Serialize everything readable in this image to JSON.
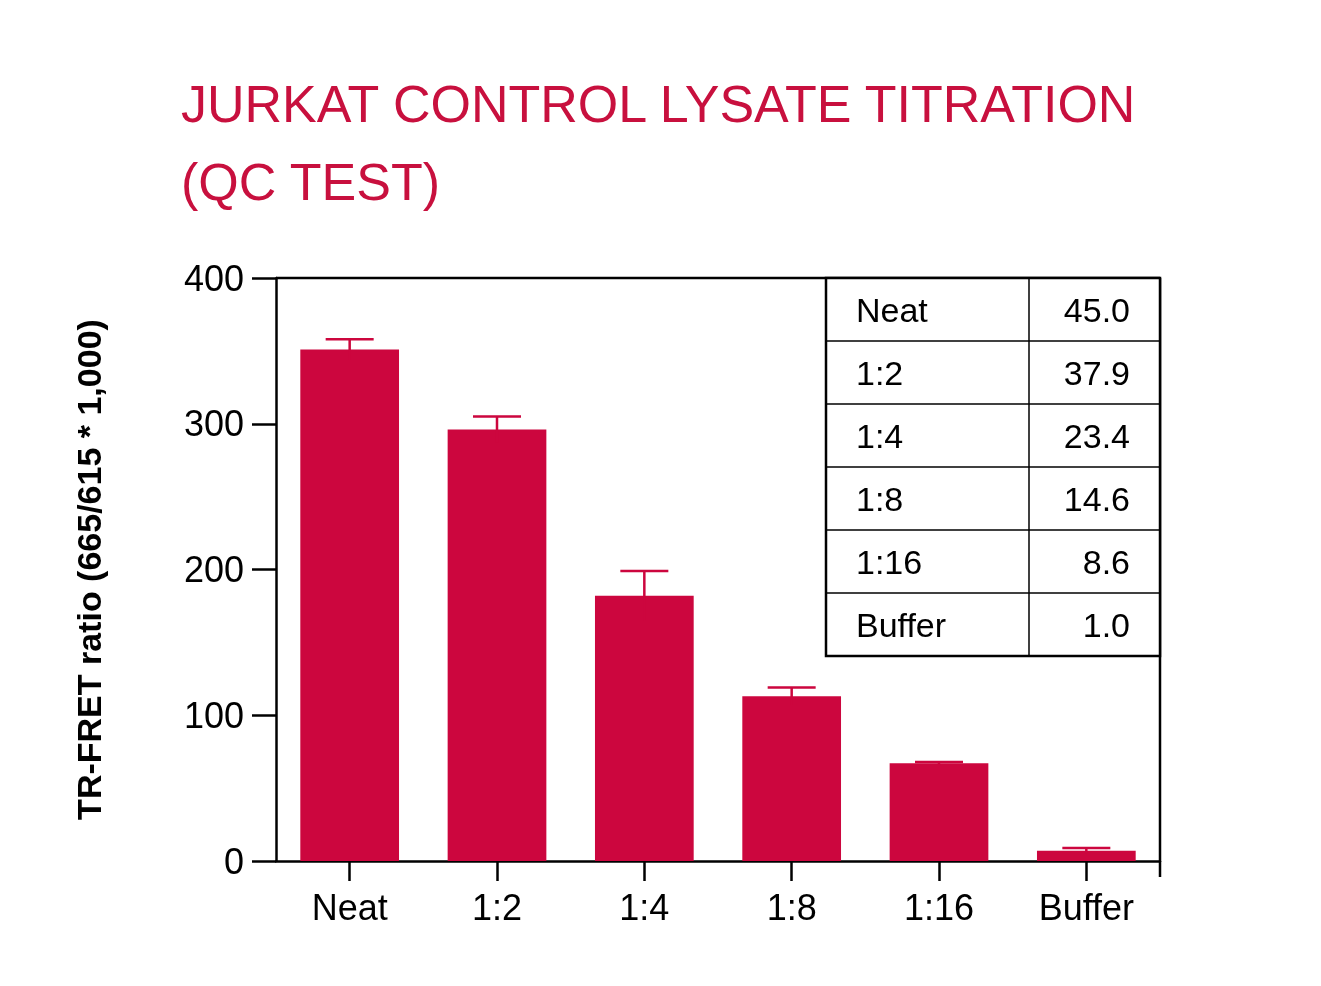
{
  "chart_data": {
    "type": "bar",
    "title": "JURKAT CONTROL LYSATE TITRATION (QC TEST)",
    "ylabel": "TR-FRET ratio (665/615 * 1,000)",
    "categories": [
      "Neat",
      "1:2",
      "1:4",
      "1:8",
      "1:16",
      "Buffer"
    ],
    "values": [
      351,
      296,
      182,
      113,
      67,
      7
    ],
    "errors": [
      7,
      9,
      17,
      6,
      1,
      2
    ],
    "color": "#cc063e",
    "ylim": [
      0,
      400
    ],
    "yticks": [
      0,
      100,
      200,
      300,
      400
    ],
    "grid": false,
    "annotations": [
      "Neat",
      "45.0",
      "1:2",
      "37.9",
      "1:4",
      "23.4",
      "1:8",
      "14.6",
      "1:16",
      "8.6",
      "Buffer",
      "1.0"
    ]
  }
}
